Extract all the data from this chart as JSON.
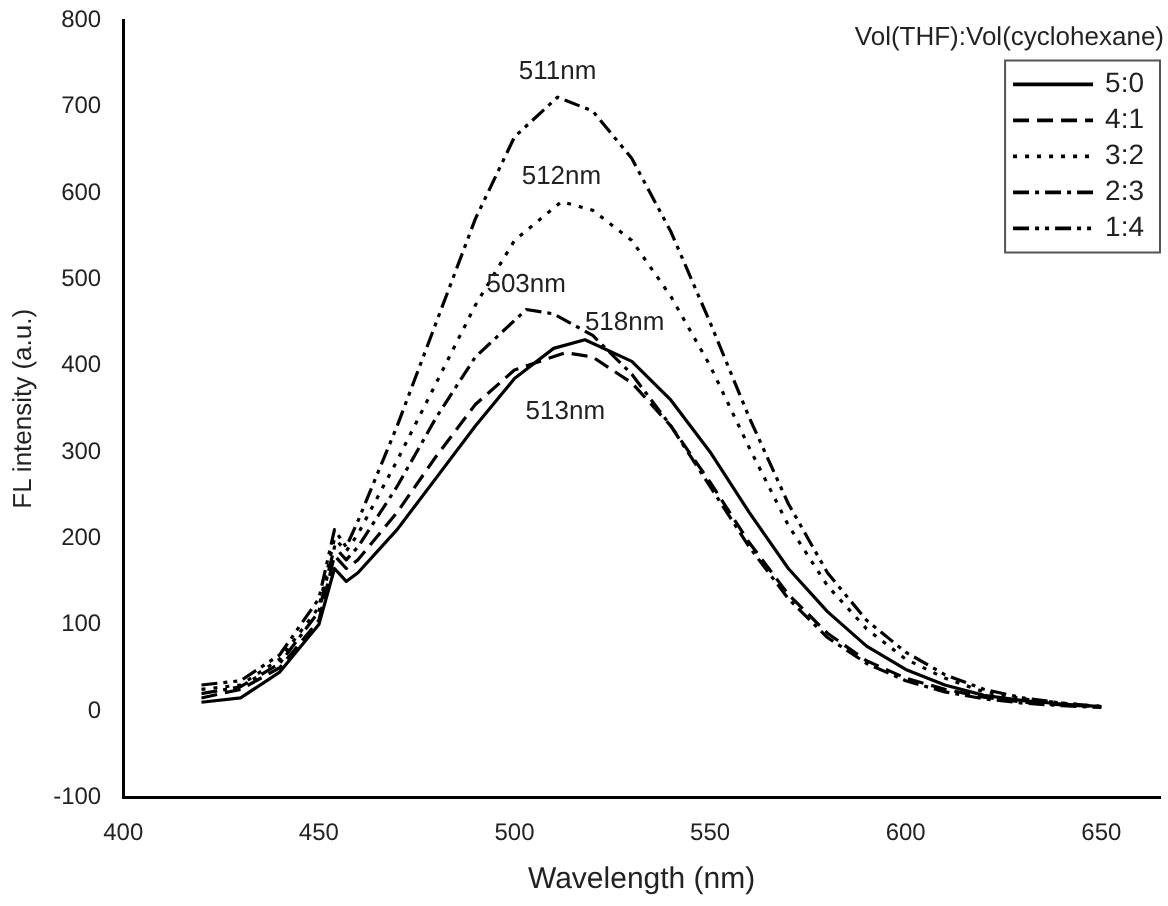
{
  "chart_data": {
    "type": "line",
    "xlabel": "Wavelength (nm)",
    "ylabel": "FL intensity (a.u.)",
    "legend_title": "Vol(THF):Vol(cyclohexane)",
    "xlim": [
      400,
      665
    ],
    "xticks": [
      400,
      450,
      500,
      550,
      600,
      650
    ],
    "ylim": [
      -100,
      800
    ],
    "yticks": [
      -100,
      0,
      100,
      200,
      300,
      400,
      500,
      600,
      700,
      800
    ],
    "grid": false,
    "legend": "top right",
    "marker": "none",
    "series": [
      {
        "name": "5:0",
        "color": "#000000",
        "line_style": "solid",
        "x": [
          420,
          430,
          440,
          450,
          454,
          457,
          460,
          470,
          480,
          490,
          500,
          510,
          518,
          530,
          540,
          550,
          560,
          570,
          580,
          590,
          600,
          610,
          620,
          630,
          640,
          650
        ],
        "values": [
          10,
          15,
          45,
          100,
          165,
          150,
          160,
          210,
          270,
          330,
          385,
          420,
          430,
          405,
          360,
          300,
          230,
          165,
          115,
          75,
          48,
          30,
          18,
          12,
          8,
          5
        ]
      },
      {
        "name": "4:1",
        "color": "#000000",
        "line_style": "dashed",
        "x": [
          420,
          430,
          440,
          450,
          454,
          457,
          460,
          470,
          480,
          490,
          500,
          513,
          520,
          530,
          540,
          550,
          560,
          570,
          580,
          590,
          600,
          610,
          620,
          630,
          640,
          650
        ],
        "values": [
          15,
          25,
          50,
          105,
          180,
          165,
          175,
          230,
          295,
          355,
          395,
          415,
          410,
          380,
          330,
          265,
          195,
          135,
          90,
          58,
          38,
          25,
          16,
          10,
          7,
          5
        ]
      },
      {
        "name": "3:2",
        "color": "#000000",
        "line_style": "dotted",
        "x": [
          420,
          430,
          440,
          450,
          454,
          457,
          460,
          470,
          480,
          490,
          500,
          512,
          520,
          530,
          540,
          550,
          560,
          570,
          580,
          590,
          600,
          610,
          620,
          630,
          640,
          650
        ],
        "values": [
          25,
          30,
          60,
          120,
          200,
          185,
          205,
          290,
          380,
          470,
          545,
          590,
          580,
          545,
          480,
          400,
          305,
          215,
          145,
          95,
          60,
          38,
          22,
          14,
          9,
          5
        ]
      },
      {
        "name": "2:3",
        "color": "#000000",
        "line_style": "dashdot",
        "x": [
          420,
          430,
          440,
          450,
          454,
          457,
          460,
          470,
          480,
          490,
          503,
          510,
          520,
          530,
          540,
          550,
          560,
          570,
          580,
          590,
          600,
          610,
          620,
          630,
          640,
          650
        ],
        "values": [
          20,
          28,
          55,
          115,
          190,
          175,
          190,
          260,
          340,
          410,
          465,
          460,
          435,
          390,
          330,
          260,
          190,
          130,
          85,
          55,
          35,
          22,
          14,
          9,
          6,
          4
        ]
      },
      {
        "name": "1:4",
        "color": "#000000",
        "line_style": "dashdotdot",
        "x": [
          420,
          430,
          440,
          450,
          454,
          457,
          460,
          470,
          480,
          490,
          500,
          511,
          520,
          530,
          540,
          550,
          560,
          570,
          580,
          590,
          600,
          610,
          620,
          630,
          640,
          650
        ],
        "values": [
          30,
          35,
          65,
          130,
          210,
          190,
          220,
          330,
          450,
          570,
          665,
          711,
          695,
          640,
          555,
          450,
          340,
          240,
          160,
          105,
          68,
          42,
          25,
          15,
          9,
          5
        ]
      }
    ],
    "annotations": [
      {
        "text": "511nm",
        "x": 511,
        "y": 711
      },
      {
        "text": "512nm",
        "x": 512,
        "y": 590
      },
      {
        "text": "503nm",
        "x": 503,
        "y": 465
      },
      {
        "text": "518nm",
        "x": 518,
        "y": 430
      },
      {
        "text": "513nm",
        "x": 513,
        "y": 415
      }
    ]
  }
}
